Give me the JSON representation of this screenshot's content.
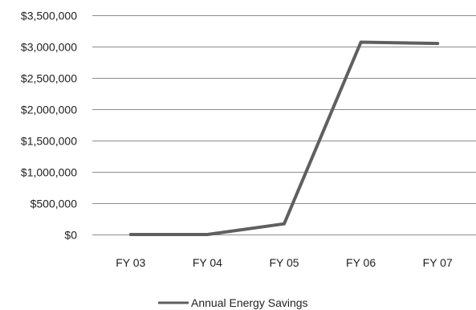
{
  "chart_data": {
    "type": "line",
    "categories": [
      "FY 03",
      "FY 04",
      "FY 05",
      "FY 06",
      "FY 07"
    ],
    "series": [
      {
        "name": "Annual Energy Savings",
        "values": [
          0,
          0,
          170000,
          3070000,
          3050000
        ]
      }
    ],
    "ylim": [
      0,
      3500000
    ],
    "yticks": [
      0,
      500000,
      1000000,
      1500000,
      2000000,
      2500000,
      3000000,
      3500000
    ],
    "ytick_labels": [
      "$0",
      "$500,000",
      "$1,000,000",
      "$1,500,000",
      "$2,000,000",
      "$2,500,000",
      "$3,000,000",
      "$3,500,000"
    ],
    "grid": "horizontal",
    "legend": "bottom-center",
    "line_color": "#5f5f5f",
    "grid_color": "#8c8c8c"
  }
}
